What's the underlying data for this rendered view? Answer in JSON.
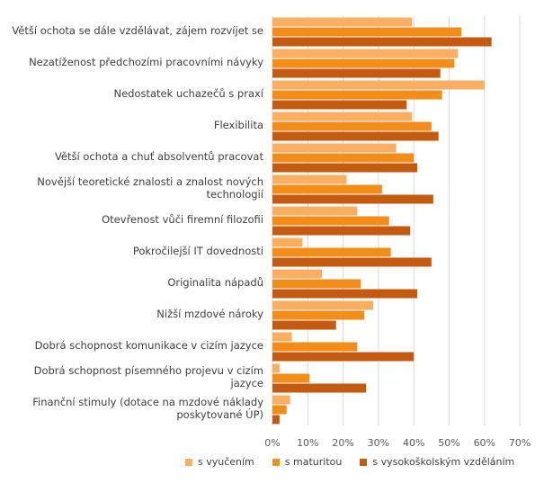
{
  "chart_data": {
    "type": "bar",
    "orientation": "horizontal",
    "categories": [
      "Větší ochota se dále vzdělávat, zájem rozvíjet se",
      "Nezatíženost předchozími pracovními návyky",
      "Nedostatek uchazečů s praxí",
      "Flexibilita",
      "Větší ochota a chuť absolventů pracovat",
      "Novější teoretické znalosti a znalost nových technologií",
      "Otevřenost vůči firemní filozofii",
      "Pokročilejší IT dovednosti",
      "Originalita nápadů",
      "Nižší mzdové nároky",
      "Dobrá schopnost komunikace v cizím jazyce",
      "Dobrá schopnost písemného projevu v cizím jazyce",
      "Finanční stimuly (dotace na mzdové náklady poskytované ÚP)"
    ],
    "series": [
      {
        "name": "s vyučením",
        "color": "#F9AE62",
        "values": [
          39.5,
          52.5,
          60,
          39.5,
          35,
          21,
          24,
          8.5,
          14,
          28.5,
          5.5,
          2,
          5
        ]
      },
      {
        "name": "s maturitou",
        "color": "#F28D1A",
        "values": [
          53.5,
          51.5,
          48,
          45,
          40,
          31,
          33,
          33.5,
          25,
          26,
          24,
          10.5,
          4
        ]
      },
      {
        "name": "s vysokoškolským vzděláním",
        "color": "#C55A11",
        "values": [
          62,
          47.5,
          38,
          47,
          41,
          45.5,
          39,
          45,
          41,
          18,
          40,
          26.5,
          2
        ]
      }
    ],
    "xlim": [
      0,
      70
    ],
    "xticks": [
      "0%",
      "10%",
      "20%",
      "30%",
      "40%",
      "50%",
      "60%",
      "70%"
    ],
    "grid": true,
    "legend_position": "bottom"
  }
}
